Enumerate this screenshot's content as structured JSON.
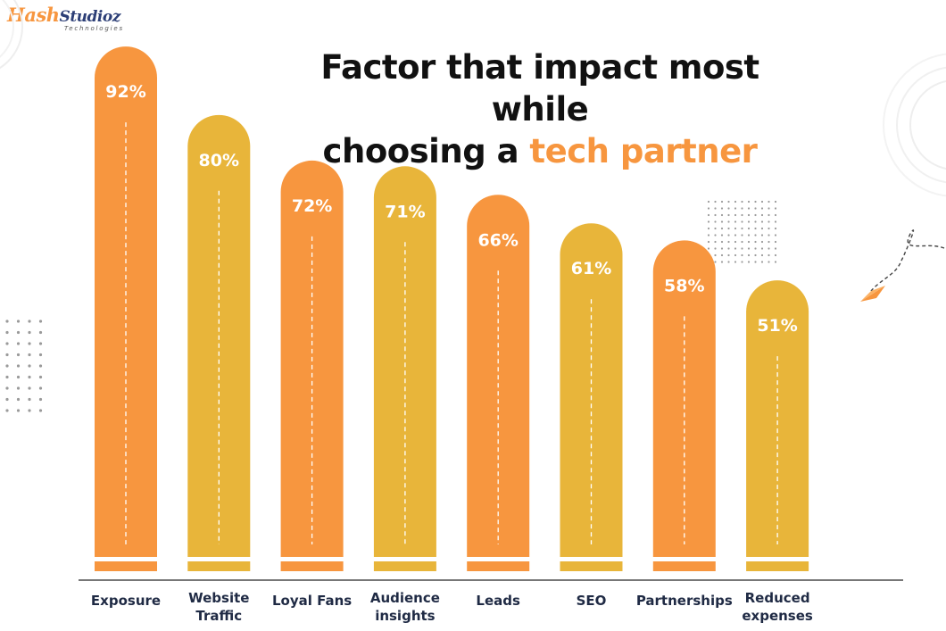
{
  "brand": {
    "name_part1": "Hash",
    "name_part2": "Studioz",
    "tagline": "Technologies"
  },
  "title": {
    "line1": "Factor that impact most while",
    "line2_prefix": "choosing a ",
    "line2_highlight": "tech partner"
  },
  "colors": {
    "orange": "#f7963f",
    "yellow": "#e8b53a",
    "axis": "#4a4a4a",
    "text": "#1f2a44"
  },
  "chart_data": {
    "type": "bar",
    "title": "Factor that impact most while choosing a tech partner",
    "categories": [
      "Exposure",
      "Website\nTraffic",
      "Loyal Fans",
      "Audience\ninsights",
      "Leads",
      "SEO",
      "Partnerships",
      "Reduced\nexpenses"
    ],
    "values": [
      92,
      80,
      72,
      71,
      66,
      61,
      58,
      51
    ],
    "value_labels": [
      "92%",
      "80%",
      "72%",
      "71%",
      "66%",
      "61%",
      "58%",
      "51%"
    ],
    "bar_colors": [
      "orange",
      "yellow",
      "orange",
      "yellow",
      "orange",
      "yellow",
      "orange",
      "yellow"
    ],
    "xlabel": "",
    "ylabel": "",
    "ylim": [
      0,
      100
    ],
    "grid": false,
    "legend": "none"
  }
}
